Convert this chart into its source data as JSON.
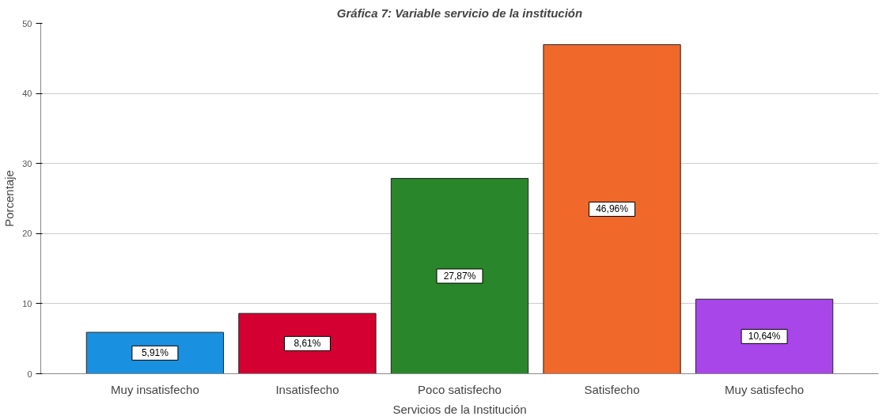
{
  "chart_data": {
    "type": "bar",
    "title": "Gráfica 7: Variable servicio de la institución",
    "xlabel": "Servicios de la Institución",
    "ylabel": "Porcentaje",
    "categories": [
      "Muy insatisfecho",
      "Insatisfecho",
      "Poco satisfecho",
      "Satisfecho",
      "Muy satisfecho"
    ],
    "values": [
      5.91,
      8.61,
      27.87,
      46.96,
      10.64
    ],
    "value_labels": [
      "5,91%",
      "8,61%",
      "27,87%",
      "46,96%",
      "10,64%"
    ],
    "colors": [
      "#1a90e0",
      "#d30031",
      "#2a862a",
      "#f0682a",
      "#a846ea"
    ],
    "ylim": [
      0,
      50
    ],
    "yticks": [
      0,
      10,
      20,
      30,
      40,
      50
    ],
    "grid": "y"
  }
}
